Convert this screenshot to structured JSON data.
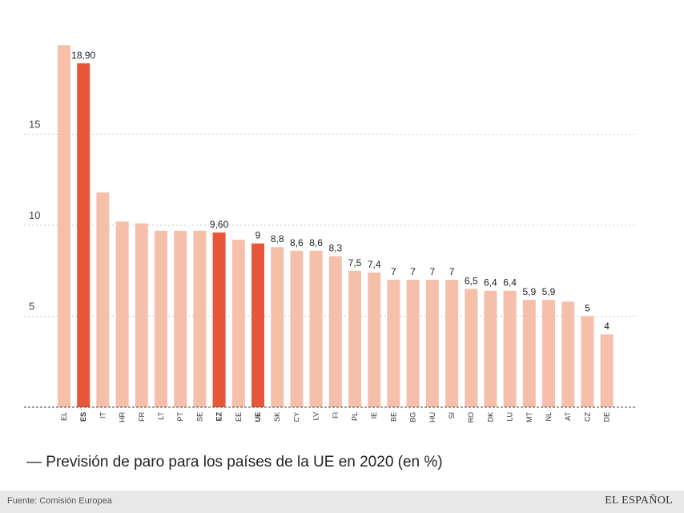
{
  "chart_data": {
    "type": "bar",
    "title": "Previsión de paro para los países de la UE en 2020 (en %)",
    "xlabel": "",
    "ylabel": "",
    "ylim": [
      0,
      20
    ],
    "yticks": [
      5,
      10,
      15
    ],
    "grid": true,
    "categories": [
      "EL",
      "ES",
      "IT",
      "HR",
      "FR",
      "LT",
      "PT",
      "SE",
      "EZ",
      "EE",
      "UE",
      "SK",
      "CY",
      "LV",
      "FI",
      "PL",
      "IE",
      "BE",
      "BG",
      "HU",
      "SI",
      "RO",
      "DK",
      "LU",
      "MT",
      "NL",
      "AT",
      "CZ",
      "DE"
    ],
    "values": [
      19.9,
      18.9,
      11.8,
      10.2,
      10.1,
      9.7,
      9.7,
      9.7,
      9.6,
      9.2,
      9.0,
      8.8,
      8.6,
      8.6,
      8.3,
      7.5,
      7.4,
      7.0,
      7.0,
      7.0,
      7.0,
      6.5,
      6.4,
      6.4,
      5.9,
      5.9,
      5.8,
      5.0,
      4.0
    ],
    "value_labels": [
      "",
      "18,90",
      "",
      "",
      "",
      "",
      "",
      "",
      "9,60",
      "",
      "9",
      "8,8",
      "8,6",
      "8,6",
      "8,3",
      "7,5",
      "7,4",
      "7",
      "7",
      "7",
      "7",
      "6,5",
      "6,4",
      "6,4",
      "5,9",
      "5,9",
      "",
      "5",
      "4"
    ],
    "highlight": [
      "ES",
      "EZ",
      "UE"
    ],
    "colors": {
      "bar": "#f5bfaa",
      "highlight": "#e8573a",
      "grid": "#c8c8c8",
      "baseline": "#444444"
    }
  },
  "title_prefix": "—",
  "footer": {
    "source": "Fuente: Comisión Europea",
    "brand": "EL ESPAÑOL"
  }
}
